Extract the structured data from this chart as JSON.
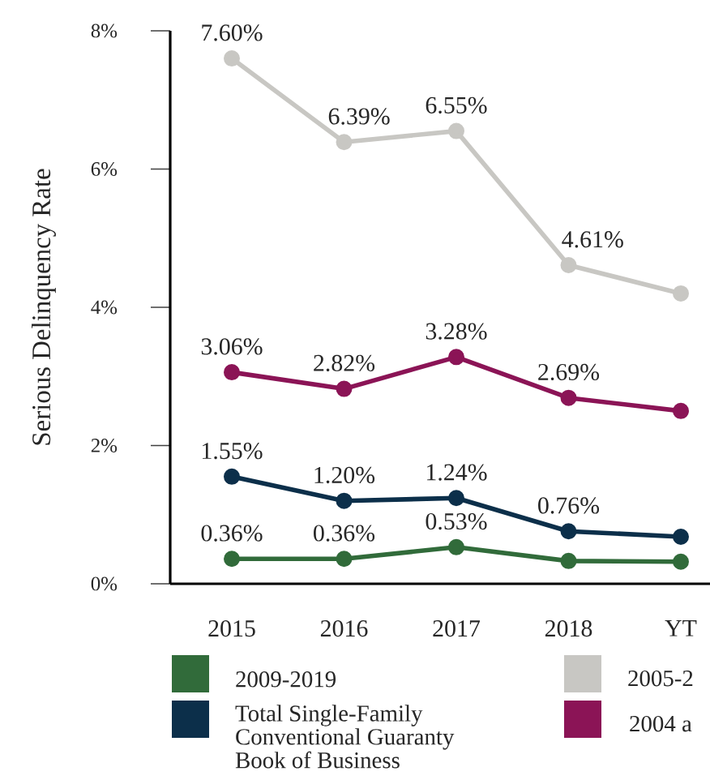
{
  "chart_data": {
    "type": "line",
    "ylabel": "Serious Delinquency Rate",
    "categories": [
      "2015",
      "2016",
      "2017",
      "2018",
      "YT"
    ],
    "ylim": [
      0,
      8
    ],
    "yticks": [
      {
        "value": 0,
        "label": "0%"
      },
      {
        "value": 2,
        "label": "2%"
      },
      {
        "value": 4,
        "label": "4%"
      },
      {
        "value": 6,
        "label": "6%"
      },
      {
        "value": 8,
        "label": "8%"
      }
    ],
    "grid": false,
    "legend": "bottom",
    "marker": "circle",
    "line_style": "solid",
    "series": [
      {
        "name": "2009-2019",
        "color": "#316b3a",
        "values": [
          0.36,
          0.36,
          0.53,
          0.33,
          0.32
        ],
        "value_labels": [
          "0.36%",
          "0.36%",
          "0.53%",
          null,
          null
        ]
      },
      {
        "name": "2005-2",
        "color": "#c8c7c3",
        "values": [
          7.6,
          6.39,
          6.55,
          4.61,
          4.2
        ],
        "value_labels": [
          "7.60%",
          "6.39%",
          "6.55%",
          "4.61%",
          null
        ]
      },
      {
        "name": "Total Single-Family Conventional Guaranty Book of Business",
        "color": "#0c2f4a",
        "values": [
          1.55,
          1.2,
          1.24,
          0.76,
          0.68
        ],
        "value_labels": [
          "1.55%",
          "1.20%",
          "1.24%",
          "0.76%",
          null
        ]
      },
      {
        "name": "2004 a",
        "color": "#8b1456",
        "values": [
          3.06,
          2.82,
          3.28,
          2.69,
          2.5
        ],
        "value_labels": [
          "3.06%",
          "2.82%",
          "3.28%",
          "2.69%",
          null
        ]
      }
    ]
  }
}
